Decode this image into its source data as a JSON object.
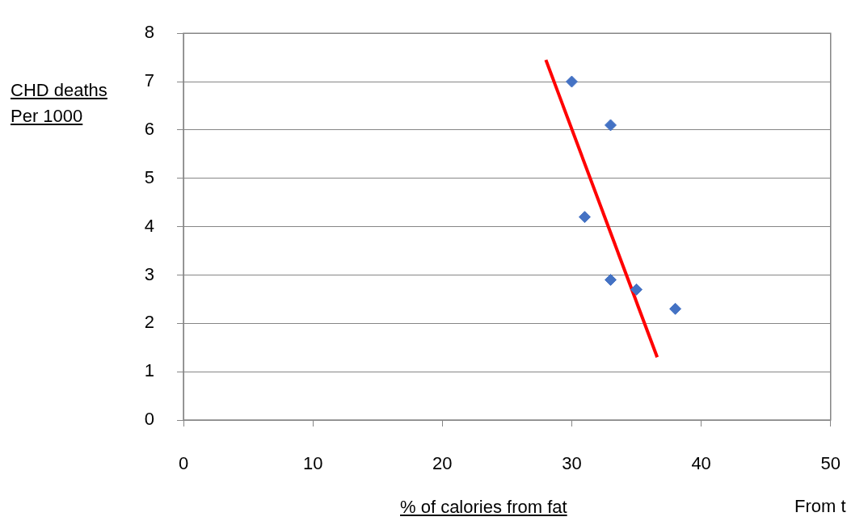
{
  "chart_data": {
    "type": "scatter",
    "xlabel": "% of calories from fat",
    "ylabel": "CHD deaths\nPer 1000",
    "x": [
      30,
      33,
      31,
      33,
      35,
      38
    ],
    "series": [
      {
        "color": "#4472c4",
        "values": [
          7.0,
          6.1,
          4.2,
          2.9,
          2.7,
          2.3
        ]
      },
      {
        "type": "line",
        "color": "#ff0000",
        "x": [
          28,
          36.6
        ],
        "values": [
          7.45,
          1.3
        ],
        "marker": "none"
      }
    ],
    "xlim": [
      0,
      50
    ],
    "xticks": [
      0,
      10,
      20,
      30,
      40,
      50
    ],
    "ylim": [
      0,
      8
    ],
    "yticks": [
      0,
      1,
      2,
      3,
      4,
      5,
      6,
      7,
      8
    ],
    "grid": "y",
    "legend": false,
    "marker": "diamond",
    "annotations": [
      "From t"
    ]
  }
}
